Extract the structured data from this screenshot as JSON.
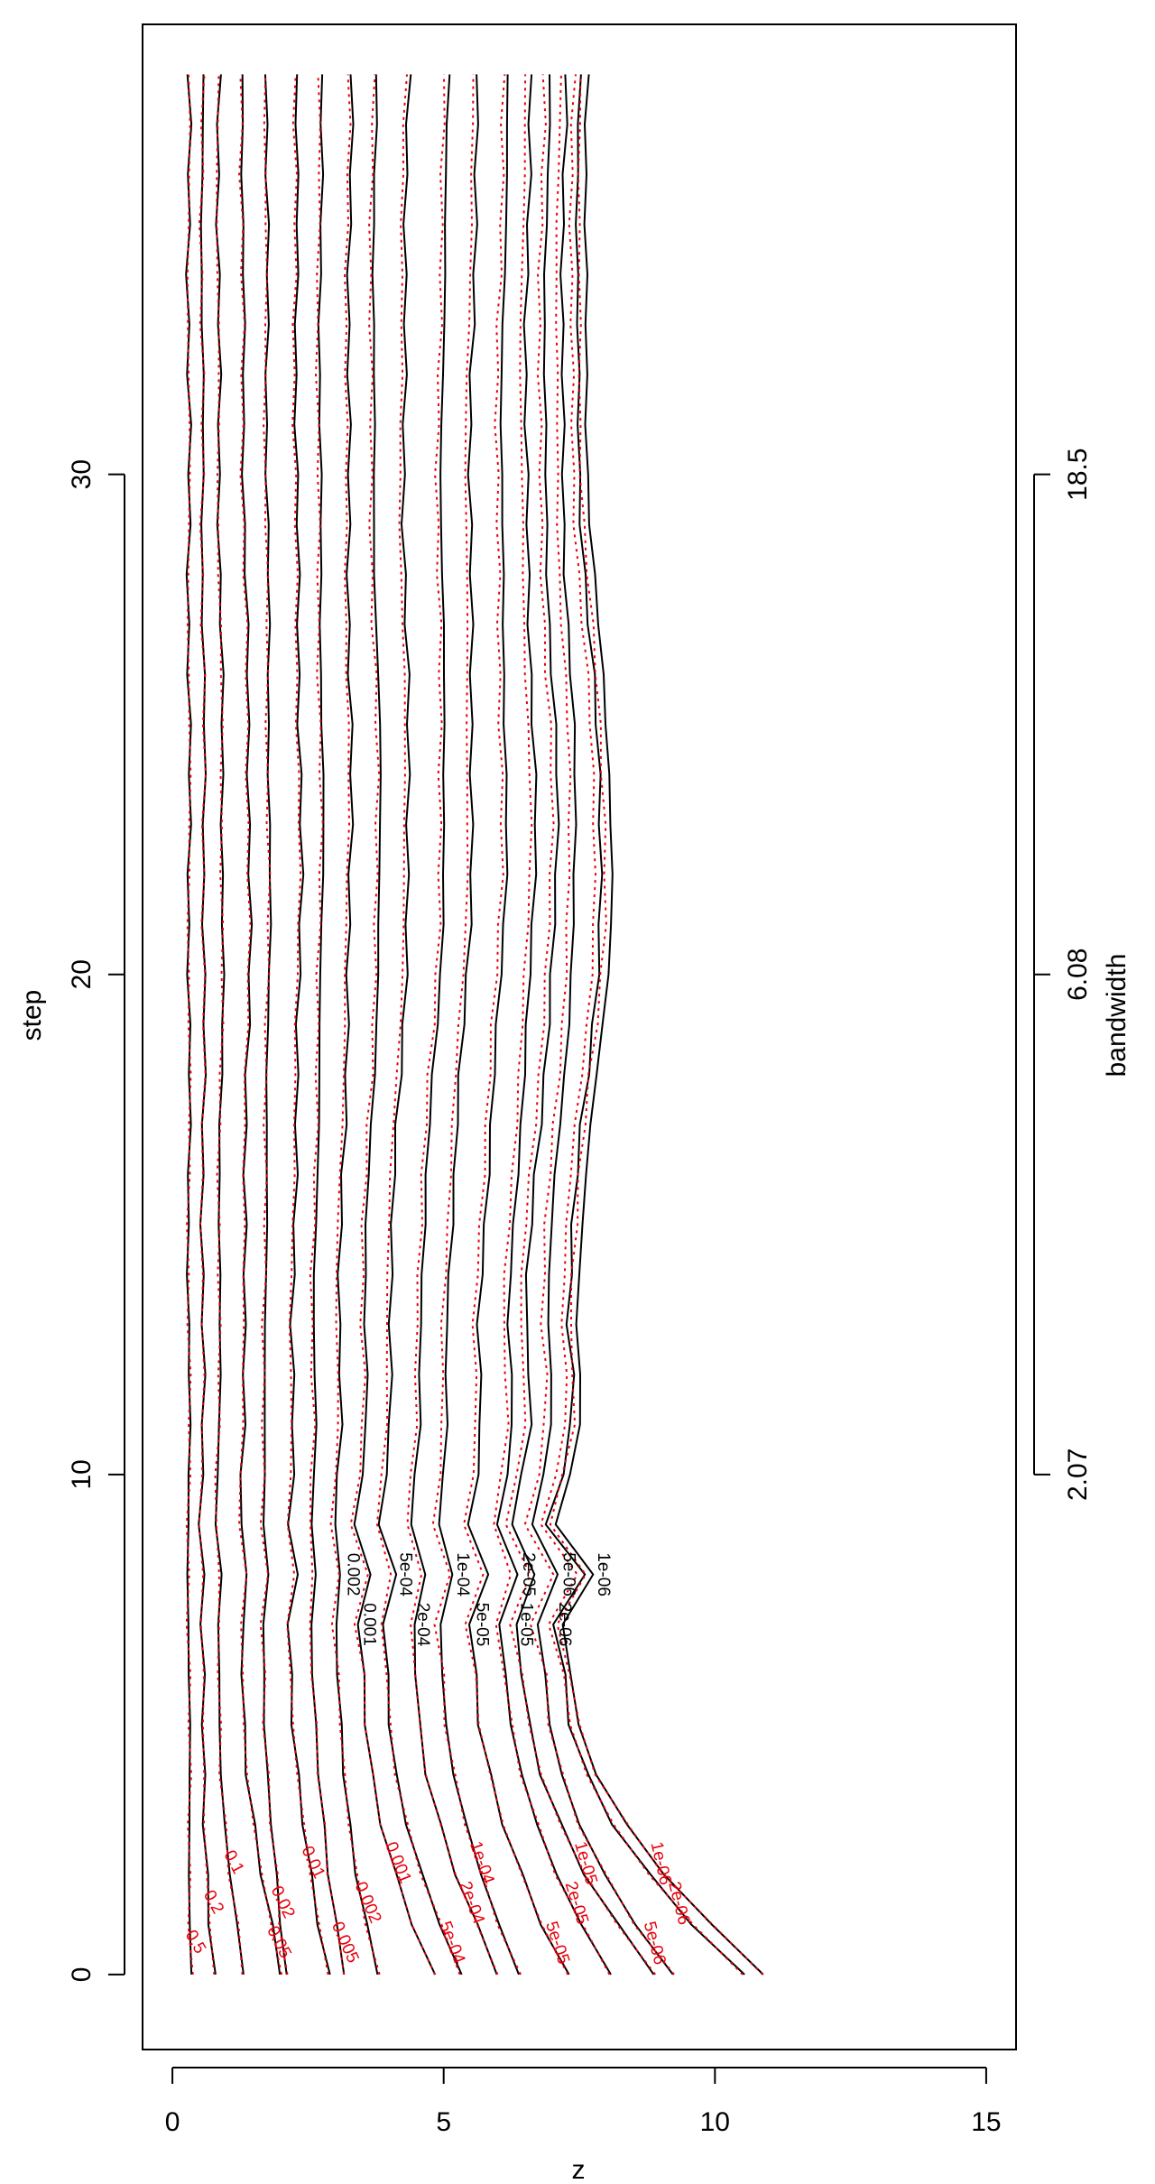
{
  "chart_data": {
    "type": "contour",
    "title": "",
    "xlabel": "z",
    "ylabel": "step",
    "secondary_axis_label": "bandwidth",
    "xlim": [
      -0.55,
      15.55
    ],
    "ylim": [
      -1.5,
      39.0
    ],
    "x_ticks": [
      0,
      5,
      10,
      15
    ],
    "y_ticks": [
      0,
      10,
      20,
      30
    ],
    "secondary_ticks": [
      {
        "step": 10,
        "label": "2.07"
      },
      {
        "step": 20,
        "label": "6.08"
      },
      {
        "step": 30,
        "label": "18.5"
      }
    ],
    "steps": [
      0,
      1,
      2,
      3,
      4,
      5,
      6,
      7,
      8,
      9,
      10,
      11,
      12,
      13,
      14,
      15,
      16,
      17,
      18,
      19,
      20,
      21,
      22,
      23,
      24,
      25,
      26,
      27,
      28,
      29,
      30,
      31,
      32,
      33,
      34,
      35,
      36,
      37,
      38
    ],
    "series": [
      {
        "name": "black",
        "color": "#000000",
        "dash": "solid"
      },
      {
        "name": "red",
        "color": "#e8000b",
        "dash": "dotted"
      }
    ],
    "contours": [
      {
        "level": "0.5",
        "label_black": "",
        "label_red": "0.5",
        "z0": 0.35,
        "z_min": 0.3,
        "z_end": 0.3
      },
      {
        "level": "0.2",
        "label_black": "",
        "label_red": "0.2",
        "z0": 0.75,
        "z_min": 0.55,
        "z_end": 0.55
      },
      {
        "level": "0.1",
        "label_black": "",
        "label_red": "0.1",
        "z0": 1.3,
        "z_min": 0.85,
        "z_end": 0.85
      },
      {
        "level": "0.05",
        "label_black": "",
        "label_red": "0.05",
        "z0": 2.0,
        "z_min": 1.3,
        "z_end": 1.3
      },
      {
        "level": "0.02",
        "label_black": "",
        "label_red": "0.02",
        "z0": 2.1,
        "z_min": 1.7,
        "z_end": 1.75
      },
      {
        "level": "0.01",
        "label_black": "",
        "label_red": "0.01",
        "z0": 2.9,
        "z_min": 2.2,
        "z_end": 2.3
      },
      {
        "level": "0.005",
        "label_black": "",
        "label_red": "0.005",
        "z0": 3.2,
        "z_min": 2.6,
        "z_end": 2.75
      },
      {
        "level": "0.002",
        "label_black": "0.002",
        "label_red": "0.002",
        "z0": 3.8,
        "z_min": 3.05,
        "z_end": 3.3
      },
      {
        "level": "0.001",
        "label_black": "0.001",
        "label_red": "0.001",
        "z0": 4.8,
        "z_min": 3.5,
        "z_end": 3.75
      },
      {
        "level": "5e-04",
        "label_black": "5e-04",
        "label_red": "5e-04",
        "z0": 5.3,
        "z_min": 3.95,
        "z_end": 4.35
      },
      {
        "level": "2e-04",
        "label_black": "2e-04",
        "label_red": "2e-04",
        "z0": 6.0,
        "z_min": 4.5,
        "z_end": 5.1
      },
      {
        "level": "1e-04",
        "label_black": "1e-04",
        "label_red": "1e-04",
        "z0": 6.4,
        "z_min": 5.0,
        "z_end": 5.65
      },
      {
        "level": "5e-05",
        "label_black": "5e-05",
        "label_red": "5e-05",
        "z0": 7.3,
        "z_min": 5.6,
        "z_end": 6.2
      },
      {
        "level": "2e-05",
        "label_black": "2e-05",
        "label_red": "2e-05",
        "z0": 8.1,
        "z_min": 6.15,
        "z_end": 6.6
      },
      {
        "level": "1e-05",
        "label_black": "1e-05",
        "label_red": "1e-05",
        "z0": 8.9,
        "z_min": 6.45,
        "z_end": 6.95
      },
      {
        "level": "5e-06",
        "label_black": "5e-06",
        "label_red": "5e-06",
        "z0": 9.2,
        "z_min": 6.85,
        "z_end": 7.25
      },
      {
        "level": "2e-06",
        "label_black": "2e-06",
        "label_red": "2e-06",
        "z0": 10.5,
        "z_min": 7.2,
        "z_end": 7.5
      },
      {
        "level": "1e-06",
        "label_black": "1e-06",
        "label_red": "1e-06",
        "z0": 10.9,
        "z_min": 7.35,
        "z_end": 7.65
      }
    ]
  }
}
